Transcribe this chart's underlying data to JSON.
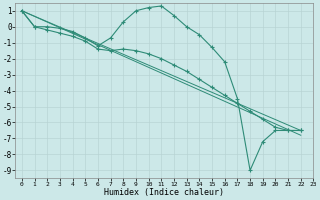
{
  "xlabel": "Humidex (Indice chaleur)",
  "line1_x": [
    0,
    1,
    2,
    3,
    4,
    5,
    6,
    7,
    8,
    9,
    10,
    11,
    12,
    13,
    14,
    15,
    16,
    17,
    18,
    19,
    20,
    21,
    22
  ],
  "line1_y": [
    1,
    0,
    0,
    -0.1,
    -0.3,
    -0.7,
    -1.2,
    -0.7,
    0.3,
    1.0,
    1.2,
    1.3,
    0.7,
    0.0,
    -0.5,
    -1.3,
    -2.2,
    -4.5,
    -9.0,
    -7.2,
    -6.5,
    -6.5,
    -6.5
  ],
  "line2_x": [
    0,
    1,
    2,
    3,
    4,
    5,
    6,
    7,
    8,
    9,
    10,
    11,
    12,
    13,
    14,
    15,
    16,
    17,
    18,
    19,
    20,
    21,
    22
  ],
  "line2_y": [
    1,
    0,
    -0.2,
    -0.4,
    -0.6,
    -0.9,
    -1.4,
    -1.5,
    -1.4,
    -1.5,
    -1.7,
    -2.0,
    -2.4,
    -2.8,
    -3.3,
    -3.8,
    -4.3,
    -4.8,
    -5.3,
    -5.8,
    -6.3,
    -6.5,
    -6.5
  ],
  "line3_x": [
    0,
    22
  ],
  "line3_y": [
    1,
    -6.5
  ],
  "line4_x": [
    0,
    22
  ],
  "line4_y": [
    1,
    -6.8
  ],
  "color": "#2e8b77",
  "bg_color": "#cce8e8",
  "grid_color": "#b8d4d4",
  "xlim": [
    -0.5,
    22.5
  ],
  "ylim": [
    -9.5,
    1.5
  ],
  "yticks": [
    1,
    0,
    -1,
    -2,
    -3,
    -4,
    -5,
    -6,
    -7,
    -8,
    -9
  ],
  "xticks": [
    0,
    1,
    2,
    3,
    4,
    5,
    6,
    7,
    8,
    9,
    10,
    11,
    12,
    13,
    14,
    15,
    16,
    17,
    18,
    19,
    20,
    21,
    22,
    23
  ]
}
